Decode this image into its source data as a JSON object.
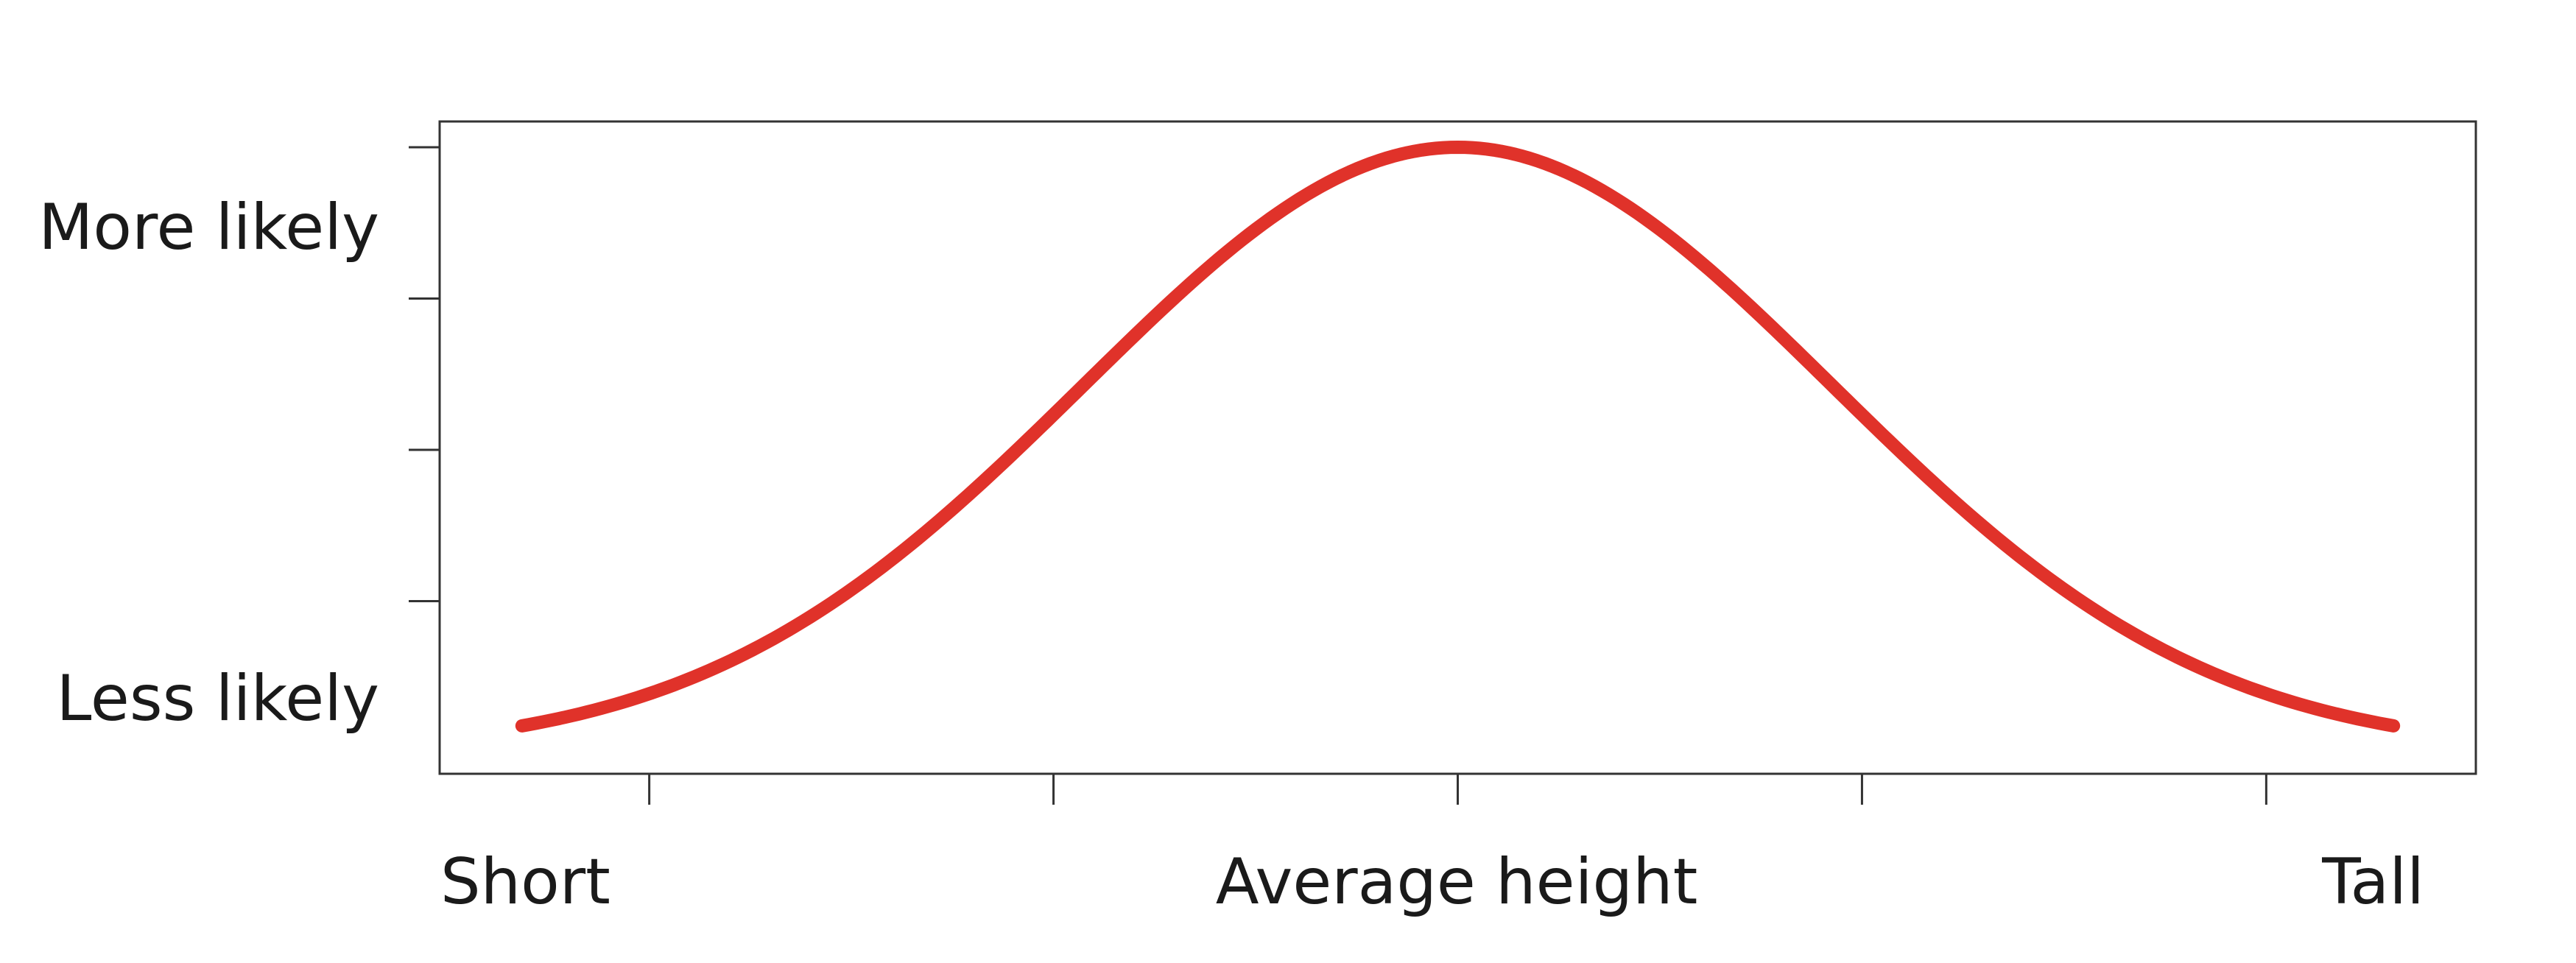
{
  "chart_data": {
    "type": "line",
    "title": "",
    "xlabel": "",
    "ylabel": "",
    "xlim": [
      -2.72,
      2.72
    ],
    "ylim": [
      0.0,
      1.0
    ],
    "grid": false,
    "legend": "none",
    "x_tick_labels": [
      {
        "x": -2.52,
        "label": "Short"
      },
      {
        "x": 0,
        "label": "Average height"
      },
      {
        "x": 2.52,
        "label": "Tall"
      }
    ],
    "y_tick_labels": [
      {
        "y": 0.87,
        "label": "More likely"
      },
      {
        "y": 0.115,
        "label": "Less likely"
      }
    ],
    "x_ticks": [
      -2.16,
      -1.08,
      0,
      1.08,
      2.16
    ],
    "y_ticks": [
      0.25,
      0.5,
      0.75,
      1.0
    ],
    "series": [
      {
        "color": "#e0322a",
        "shape": "normal-curve",
        "mean": 0,
        "sd": 1,
        "x_range": [
          -2.5,
          2.5
        ],
        "peak": 1.0,
        "x": [
          -2.5,
          -2.25,
          -2.0,
          -1.75,
          -1.5,
          -1.25,
          -1.0,
          -0.75,
          -0.5,
          -0.25,
          0.0,
          0.25,
          0.5,
          0.75,
          1.0,
          1.25,
          1.5,
          1.75,
          2.0,
          2.25,
          2.5
        ],
        "y": [
          0.044,
          0.08,
          0.135,
          0.216,
          0.325,
          0.458,
          0.607,
          0.755,
          0.882,
          0.969,
          1.0,
          0.969,
          0.882,
          0.755,
          0.607,
          0.458,
          0.325,
          0.216,
          0.135,
          0.08,
          0.044
        ]
      }
    ]
  }
}
